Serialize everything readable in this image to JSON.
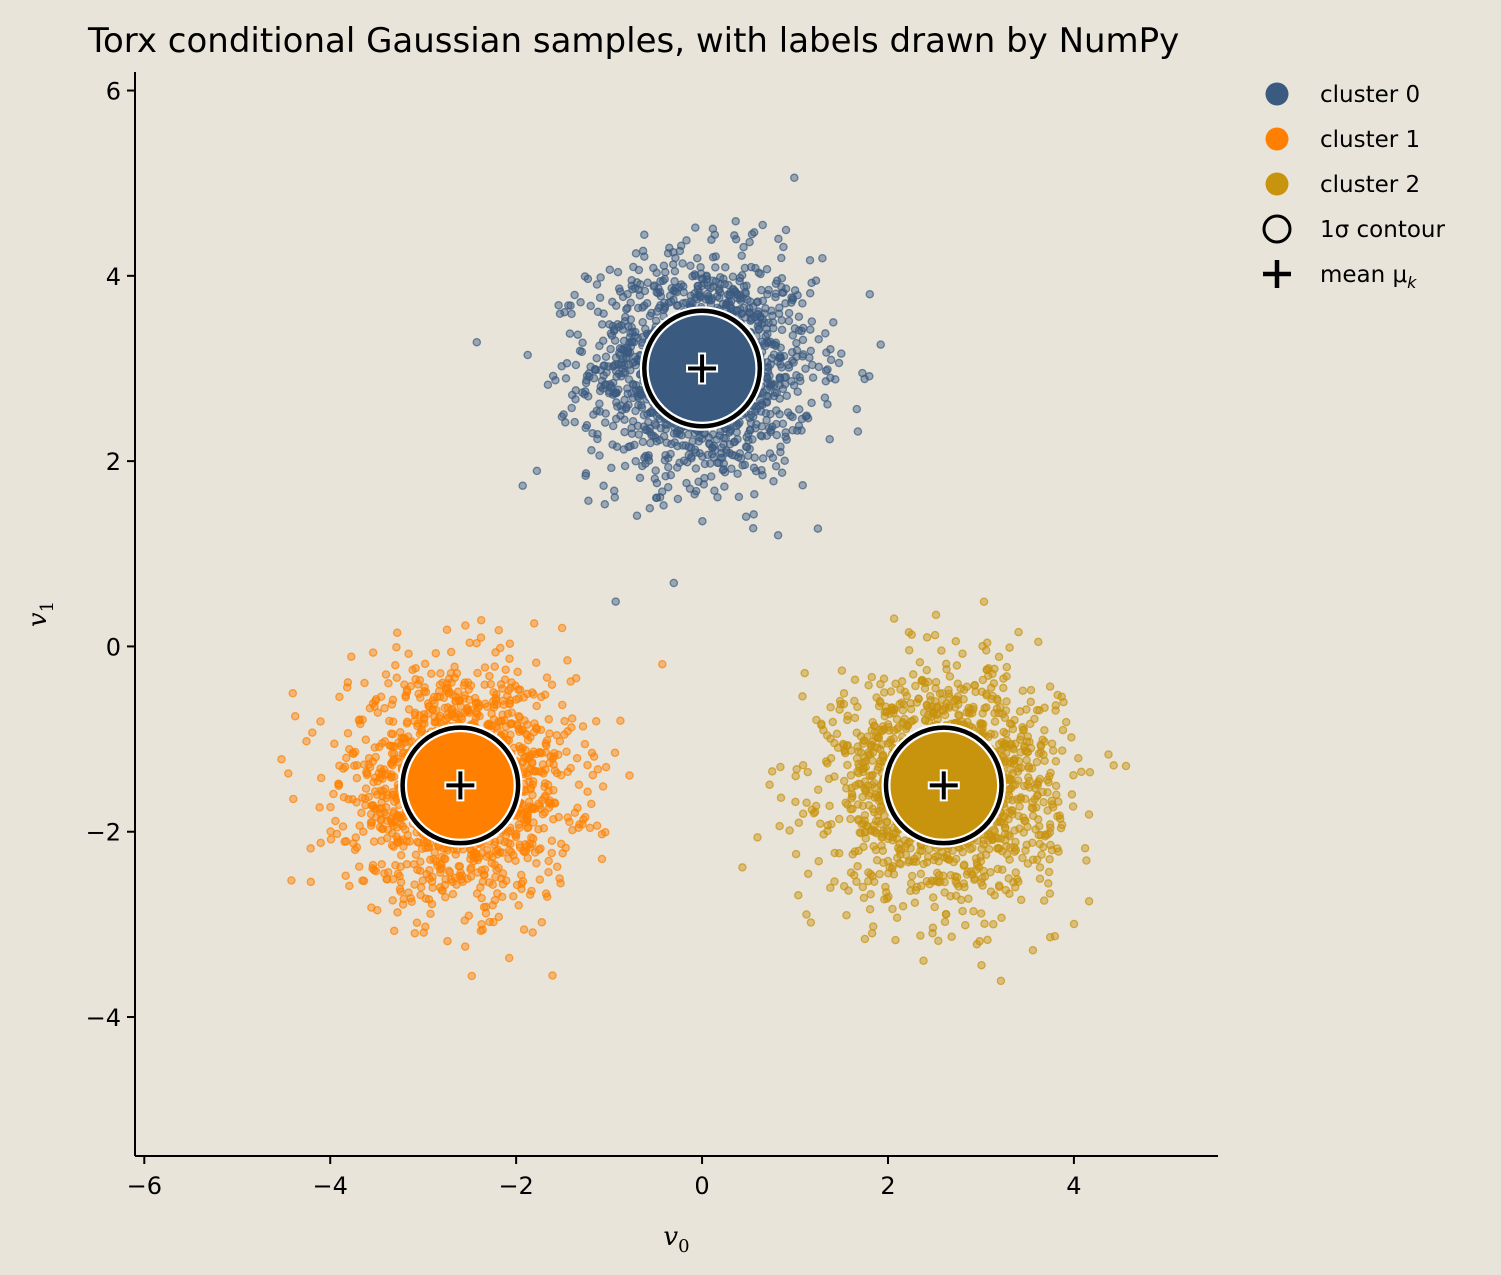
{
  "chart_data": {
    "type": "scatter",
    "title": "Torx conditional Gaussian samples, with labels drawn by NumPy",
    "xlabel": "v",
    "xlabel_sub": "0",
    "ylabel": "v",
    "ylabel_sub": "1",
    "xlim": [
      -6.1,
      5.55
    ],
    "ylim": [
      -5.5,
      6.2
    ],
    "xticks": [
      -6,
      -4,
      -2,
      0,
      2,
      4
    ],
    "yticks": [
      -4,
      -2,
      0,
      2,
      4,
      6
    ],
    "grid": false,
    "legend_position": "outside-top-right",
    "sigma": 0.6,
    "points_per_cluster": 1600,
    "series": [
      {
        "name": "cluster 0",
        "mean": [
          0.0,
          3.0
        ],
        "std": 0.6,
        "color": "#3b5a80"
      },
      {
        "name": "cluster 1",
        "mean": [
          -2.6,
          -1.5
        ],
        "std": 0.6,
        "color": "#ff8000"
      },
      {
        "name": "cluster 2",
        "mean": [
          2.6,
          -1.5
        ],
        "std": 0.6,
        "color": "#c8930d"
      }
    ],
    "legend": [
      {
        "label": "cluster 0",
        "kind": "dot",
        "color": "#3b5a80"
      },
      {
        "label": "cluster 1",
        "kind": "dot",
        "color": "#ff8000"
      },
      {
        "label": "cluster 2",
        "kind": "dot",
        "color": "#c8930d"
      },
      {
        "label": "1σ contour",
        "kind": "ring",
        "color": "#000000"
      },
      {
        "label": "mean μ",
        "sub": "k",
        "kind": "plus",
        "color": "#000000"
      }
    ]
  }
}
